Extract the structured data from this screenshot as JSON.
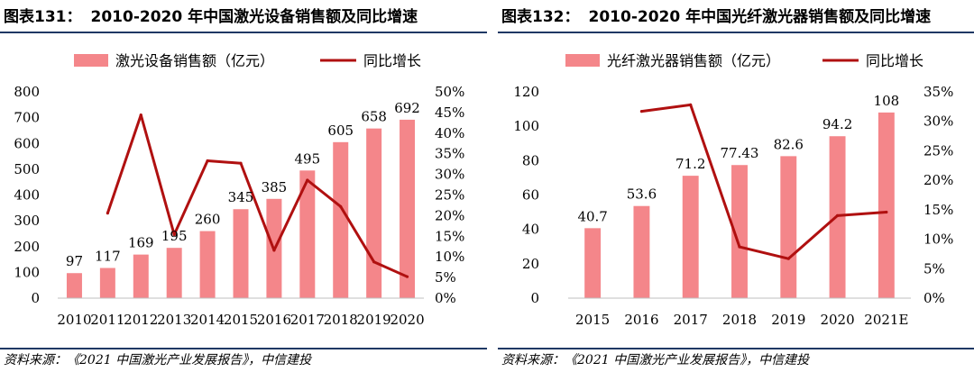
{
  "charts": [
    {
      "title_prefix": "图表131：",
      "title_text": "2010-2020 年中国激光设备销售额及同比增速",
      "source": "资料来源：《2021 中国激光产业发展报告》，中信建投",
      "colors": {
        "bar": "#f4868a",
        "line": "#b01010",
        "axis": "#bfbfbf"
      }
    },
    {
      "title_prefix": "图表132：",
      "title_text": "2010-2020 年中国光纤激光器销售额及同比增速",
      "source": "资料来源：《2021 中国激光产业发展报告》，中信建投",
      "colors": {
        "bar": "#f4868a",
        "line": "#b01010",
        "axis": "#bfbfbf"
      }
    }
  ],
  "chart_data": [
    {
      "type": "bar",
      "categories": [
        "2010",
        "2011",
        "2012",
        "2013",
        "2014",
        "2015",
        "2016",
        "2017",
        "2018",
        "2019",
        "2020"
      ],
      "series": [
        {
          "name": "激光设备销售额（亿元）",
          "type": "bar",
          "axis": "left",
          "values": [
            97,
            117,
            169,
            195,
            260,
            345,
            385,
            495,
            605,
            658,
            692
          ],
          "labels": [
            "97",
            "117",
            "169",
            "195",
            "260",
            "345",
            "385",
            "495",
            "605",
            "658",
            "692"
          ]
        },
        {
          "name": "同比增长",
          "type": "line",
          "axis": "right",
          "values": [
            null,
            20.6,
            44.4,
            15.4,
            33.3,
            32.7,
            11.6,
            28.6,
            22.2,
            8.8,
            5.2
          ]
        }
      ],
      "ylim": [
        0,
        800
      ],
      "yticks": [
        "0",
        "100",
        "200",
        "300",
        "400",
        "500",
        "600",
        "700",
        "800"
      ],
      "y2lim": [
        0,
        50
      ],
      "y2ticks": [
        "0%",
        "5%",
        "10%",
        "15%",
        "20%",
        "25%",
        "30%",
        "35%",
        "40%",
        "45%",
        "50%"
      ],
      "legend": "top",
      "grid": false
    },
    {
      "type": "bar",
      "categories": [
        "2015",
        "2016",
        "2017",
        "2018",
        "2019",
        "2020",
        "2021E"
      ],
      "series": [
        {
          "name": "光纤激光器销售额（亿元）",
          "type": "bar",
          "axis": "left",
          "values": [
            40.7,
            53.6,
            71.2,
            77.43,
            82.6,
            94.2,
            108
          ],
          "labels": [
            "40.7",
            "53.6",
            "71.2",
            "77.43",
            "82.6",
            "94.2",
            "108"
          ]
        },
        {
          "name": "同比增长",
          "type": "line",
          "axis": "right",
          "values": [
            null,
            31.7,
            32.8,
            8.7,
            6.7,
            14.0,
            14.6
          ]
        }
      ],
      "ylim": [
        0,
        120
      ],
      "yticks": [
        "0",
        "20",
        "40",
        "60",
        "80",
        "100",
        "120"
      ],
      "y2lim": [
        0,
        35
      ],
      "y2ticks": [
        "0%",
        "5%",
        "10%",
        "15%",
        "20%",
        "25%",
        "30%",
        "35%"
      ],
      "legend": "top",
      "grid": false
    }
  ]
}
